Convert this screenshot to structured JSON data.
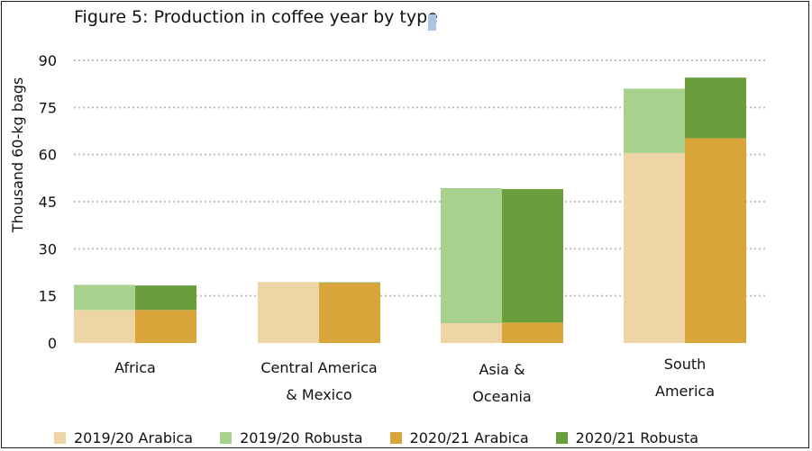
{
  "chart_data": {
    "type": "bar",
    "stacked": true,
    "title": "Figure 5: Production in coffee year by type",
    "ylabel": "Thousand 60-kg bags",
    "xlabel": "",
    "ylim": [
      0,
      90
    ],
    "yticks": [
      0,
      15,
      30,
      45,
      60,
      75,
      90
    ],
    "grid": true,
    "legend_position": "bottom",
    "categories": [
      {
        "lines": [
          "Africa"
        ]
      },
      {
        "lines": [
          "Central America",
          "& Mexico"
        ]
      },
      {
        "lines": [
          "Asia &",
          "Oceania"
        ]
      },
      {
        "lines": [
          "South",
          "America"
        ]
      }
    ],
    "series": [
      {
        "name": "2019/20 Arabica",
        "year": "2019/20",
        "type": "Arabica",
        "color": "#edd5a6",
        "values": [
          10.5,
          19.4,
          6.3,
          60.5
        ]
      },
      {
        "name": "2019/20 Robusta",
        "year": "2019/20",
        "type": "Robusta",
        "color": "#a9d18e",
        "values": [
          8.0,
          0.0,
          43.0,
          20.5
        ]
      },
      {
        "name": "2020/21 Arabica",
        "year": "2020/21",
        "type": "Arabica",
        "color": "#d9a53a",
        "values": [
          10.5,
          19.1,
          6.5,
          65.2
        ]
      },
      {
        "name": "2020/21 Robusta",
        "year": "2020/21",
        "type": "Robusta",
        "color": "#6a9e3d",
        "values": [
          7.8,
          0.2,
          42.5,
          19.3
        ]
      }
    ]
  }
}
